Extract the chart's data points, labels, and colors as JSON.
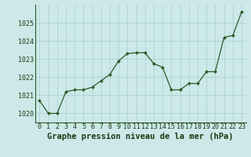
{
  "x": [
    0,
    1,
    2,
    3,
    4,
    5,
    6,
    7,
    8,
    9,
    10,
    11,
    12,
    13,
    14,
    15,
    16,
    17,
    18,
    19,
    20,
    21,
    22,
    23
  ],
  "y": [
    1020.7,
    1020.0,
    1020.0,
    1021.2,
    1021.3,
    1021.3,
    1021.45,
    1021.8,
    1022.15,
    1022.9,
    1023.3,
    1023.35,
    1023.35,
    1022.75,
    1022.55,
    1021.3,
    1021.3,
    1021.65,
    1021.65,
    1022.3,
    1022.3,
    1024.2,
    1024.3,
    1025.6
  ],
  "line_color": "#2d5a27",
  "marker_color": "#2d5a27",
  "bg_color": "#cce8e8",
  "grid_color": "#aacccc",
  "title": "Graphe pression niveau de la mer (hPa)",
  "ylim_min": 1019.5,
  "ylim_max": 1026.0,
  "yticks": [
    1020,
    1021,
    1022,
    1023,
    1024,
    1025
  ],
  "xticks": [
    0,
    1,
    2,
    3,
    4,
    5,
    6,
    7,
    8,
    9,
    10,
    11,
    12,
    13,
    14,
    15,
    16,
    17,
    18,
    19,
    20,
    21,
    22,
    23
  ],
  "title_fontsize": 7.5,
  "tick_fontsize": 6.0,
  "title_color": "#1a3a14",
  "tick_color": "#1a3a14",
  "spine_color": "#2d5a27"
}
